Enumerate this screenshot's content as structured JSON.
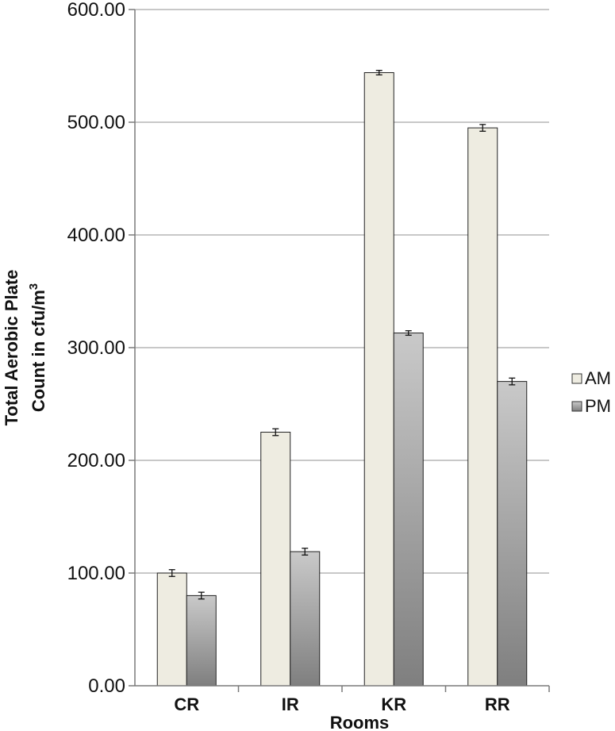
{
  "chart_data": {
    "type": "bar",
    "categories": [
      "CR",
      "IR",
      "KR",
      "RR"
    ],
    "series": [
      {
        "name": "AM",
        "values": [
          100,
          225,
          544,
          495
        ],
        "errors": [
          3,
          3,
          2,
          3
        ],
        "color": "#eeece1"
      },
      {
        "name": "PM",
        "values": [
          80,
          119,
          313,
          270
        ],
        "errors": [
          3,
          3,
          2,
          3
        ],
        "color_top": "#c9c9c9",
        "color_bottom": "#7f7f7f"
      }
    ],
    "xlabel": "Rooms",
    "ylabel_line1": "Total Aerobic Plate",
    "ylabel_line2": "Count in cfu/m",
    "ylabel_superscript": "3",
    "ylim": [
      0,
      600
    ],
    "yticks": [
      "0.00",
      "100.00",
      "200.00",
      "300.00",
      "400.00",
      "500.00",
      "600.00"
    ],
    "grid": true,
    "legend_position": "right"
  }
}
